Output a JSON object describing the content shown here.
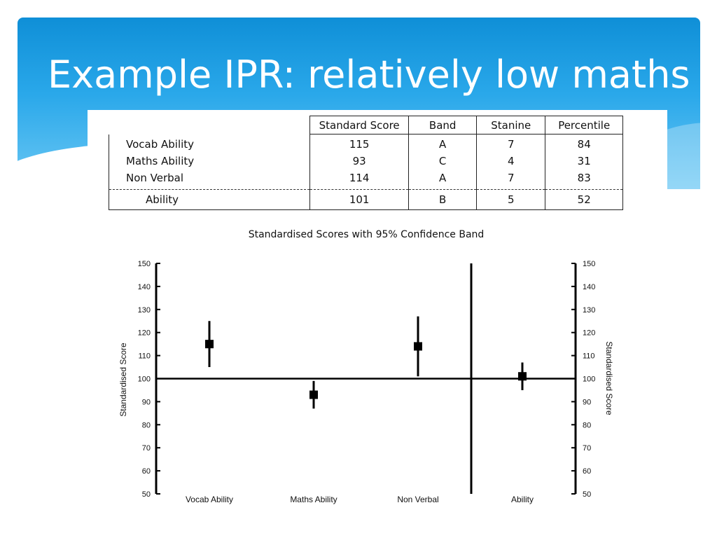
{
  "slide": {
    "title": "Example IPR: relatively low maths"
  },
  "colors": {
    "header_top": "#0f8fd7",
    "header_bottom": "#6cc8f4",
    "title_text": "#ffffff",
    "marks": "#000000"
  },
  "table": {
    "headers": [
      "Standard Score",
      "Band",
      "Stanine",
      "Percentile"
    ],
    "rows": [
      {
        "name": "Vocab Ability",
        "standard_score": "115",
        "band": "A",
        "stanine": "7",
        "percentile": "84"
      },
      {
        "name": "Maths Ability",
        "standard_score": "93",
        "band": "C",
        "stanine": "4",
        "percentile": "31"
      },
      {
        "name": "Non Verbal",
        "standard_score": "114",
        "band": "A",
        "stanine": "7",
        "percentile": "83"
      }
    ],
    "summary": {
      "name": "Ability",
      "standard_score": "101",
      "band": "B",
      "stanine": "5",
      "percentile": "52"
    }
  },
  "chart_data": {
    "type": "scatter",
    "title": "Standardised Scores with 95% Confidence Band",
    "ylabel": "Standardised Score",
    "ylabel_right": "Standardised Score",
    "ylim": [
      50,
      150
    ],
    "yticks": [
      50,
      60,
      70,
      80,
      90,
      100,
      110,
      120,
      130,
      140,
      150
    ],
    "reference_line": 100,
    "categories": [
      "Vocab Ability",
      "Maths Ability",
      "Non Verbal",
      "Ability"
    ],
    "values": [
      115,
      93,
      114,
      101
    ],
    "confidence_low": [
      105,
      87,
      101,
      95
    ],
    "confidence_high": [
      125,
      99,
      127,
      107
    ],
    "separator_after_category": 2,
    "grid": false,
    "legend": "none"
  }
}
